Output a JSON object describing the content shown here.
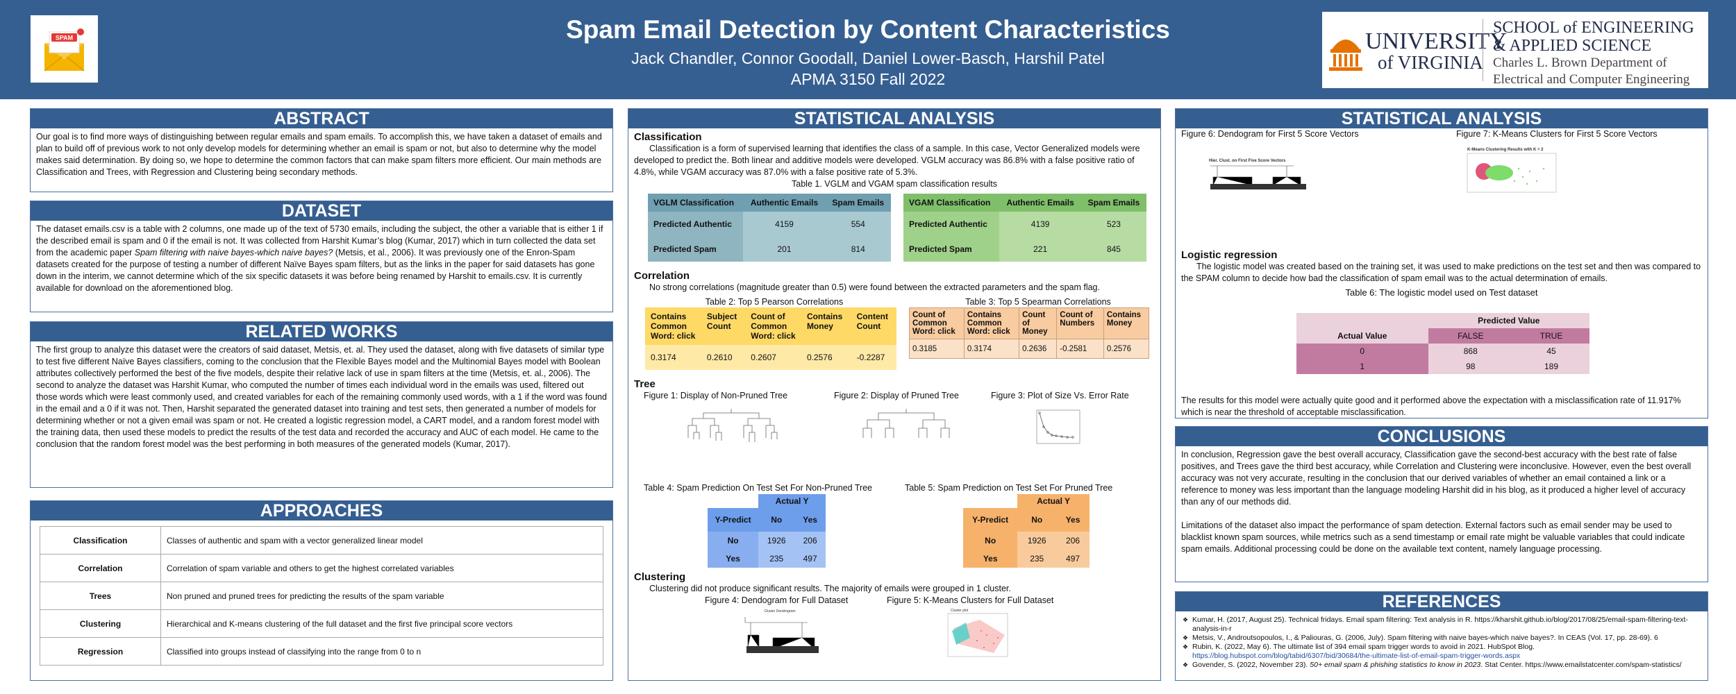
{
  "header": {
    "title": "Spam Email Detection by Content Characteristics",
    "authors": "Jack Chandler, Connor Goodall, Daniel Lower-Basch, Harshil Patel",
    "course": "APMA 3150 Fall 2022",
    "spam_icon_text": "SPAM",
    "uva_line1": "UNIVERSITY",
    "uva_line2": "of VIRGINIA",
    "school_line1": "SCHOOL of ENGINEERING",
    "school_line2": "& APPLIED SCIENCE",
    "dept_line1": "Charles L. Brown Department of",
    "dept_line2": "Electrical and Computer Engineering"
  },
  "abstract": {
    "title": "ABSTRACT",
    "text": "Our goal is to find more ways of distinguishing between regular emails and spam emails. To accomplish this, we have taken a dataset of emails and plan to build off of previous work to not only develop models for determining whether an email is spam or not, but also to determine why the model makes said determination. By doing so, we hope to determine the common factors that can make spam filters more efficient. Our main methods are Classification and Trees, with Regression and Clustering being secondary methods."
  },
  "dataset": {
    "title": "DATASET",
    "text_a": "The dataset emails.csv is a table with 2 columns, one made up of the text of 5730 emails, including the subject, the other a variable that is either 1 if the described email is spam and 0 if the email is not. It was collected from Harshit Kumar’s blog (Kumar, 2017) which in turn collected the data set from the academic paper ",
    "text_italic": "Spam filtering with naive bayes-which naive bayes?",
    "text_b": " (Metsis, et al., 2006). It was previously one of the Enron-Spam datasets created for the purpose of testing a number of different Naïve Bayes spam filters, but as the links in the paper for said datasets has gone down in the interim, we cannot determine which of the six specific datasets it was before being renamed by Harshit to emails.csv. It is currently available for download on the aforementioned blog."
  },
  "related": {
    "title": "RELATED WORKS",
    "text": "The first group to analyze this dataset were the creators of said dataset, Metsis, et. al. They used the dataset, along with five datasets of similar type to test five different Naïve Bayes classifiers, coming to the conclusion that the Flexible Bayes model and the Multinomial Bayes model with Boolean attributes collectively performed the best of the five models, despite their relative lack of use in spam filters at the time (Metsis, et. al., 2006). The second to analyze the dataset was Harshit Kumar, who computed the number of times each individual word in the emails was used, filtered out those words which were least commonly used, and created variables for each of the remaining commonly used words, with a 1 if the word was found in the email and a 0 if it was not. Then, Harshit separated the generated dataset into training and test sets, then generated a number of models for determining whether or not a given email was spam or not. He created a logistic regression model, a CART model, and a random forest model with the training data, then used these models to predict the results of the test data and recorded the accuracy and AUC of each model. He came to the conclusion that the random forest model was the best performing in both measures of the generated models (Kumar, 2017)."
  },
  "approaches": {
    "title": "APPROACHES",
    "rows": [
      {
        "name": "Classification",
        "desc": "Classes of authentic and spam with a vector generalized linear model"
      },
      {
        "name": "Correlation",
        "desc": "Correlation of spam variable and others to get the highest correlated variables"
      },
      {
        "name": "Trees",
        "desc": "Non pruned and pruned trees for predicting the results of the spam variable"
      },
      {
        "name": "Clustering",
        "desc": "Hierarchical and K-means clustering of the full dataset and the first five principal score vectors"
      },
      {
        "name": "Regression",
        "desc": "Classified into groups instead of classifying into the range from 0 to n"
      }
    ]
  },
  "stat1": {
    "title": "STATISTICAL ANALYSIS",
    "classification_heading": "Classification",
    "classification_text": "Classification is a form of supervised learning that identifies the class of a sample. In this case, Vector Generalized models were developed to predict the. Both linear and additive models were developed. VGLM accuracy was 86.8% with a false positive ratio of 4.8%, while VGAM accuracy was 87.0% with a false positive rate of 5.3%.",
    "table1_caption": "Table 1. VGLM and VGAM spam classification results",
    "vglm": {
      "header": [
        "VGLM Classification",
        "Authentic Emails",
        "Spam Emails"
      ],
      "rows": [
        [
          "Predicted Authentic",
          "4159",
          "554"
        ],
        [
          "Predicted Spam",
          "201",
          "814"
        ]
      ]
    },
    "vgam": {
      "header": [
        "VGAM Classification",
        "Authentic Emails",
        "Spam Emails"
      ],
      "rows": [
        [
          "Predicted Authentic",
          "4139",
          "523"
        ],
        [
          "Predicted Spam",
          "221",
          "845"
        ]
      ]
    },
    "correlation_heading": "Correlation",
    "correlation_text": "No strong correlations (magnitude greater than 0.5) were found between the extracted parameters and the spam flag.",
    "table2_caption": "Table 2: Top 5 Pearson Correlations",
    "pearson": {
      "header": [
        "Contains Common Word: click",
        "Subject Count",
        "Count of Common Word: click",
        "Contains Money",
        "Content Count"
      ],
      "values": [
        "0.3174",
        "0.2610",
        "0.2607",
        "0.2576",
        "-0.2287"
      ]
    },
    "table3_caption": "Table 3: Top 5 Spearman Correlations",
    "spearman": {
      "header": [
        "Count of Common Word: click",
        "Contains Common Word: click",
        "Count of Money",
        "Count of Numbers",
        "Contains Money"
      ],
      "values": [
        "0.3185",
        "0.3174",
        "0.2636",
        "-0.2581",
        "0.2576"
      ]
    },
    "tree_heading": "Tree",
    "fig1_caption": "Figure 1: Display of Non-Pruned Tree",
    "fig2_caption": "Figure 2: Display of Pruned Tree",
    "fig3_caption": "Figure 3: Plot of Size Vs. Error Rate",
    "table4_caption": "Table 4: Spam Prediction On Test Set For Non-Pruned Tree",
    "table5_caption": "Table 5: Spam Prediction on Test Set For Pruned Tree",
    "tree_table": {
      "actual_label": "Actual Y",
      "ypredict_label": "Y-Predict",
      "no": "No",
      "yes": "Yes",
      "t4": [
        [
          "1926",
          "206"
        ],
        [
          "235",
          "497"
        ]
      ],
      "t5": [
        [
          "1926",
          "206"
        ],
        [
          "235",
          "497"
        ]
      ]
    },
    "clustering_heading": "Clustering",
    "clustering_text": "Clustering did not produce significant results. The majority of emails were grouped in 1 cluster.",
    "fig4_caption": "Figure 4: Dendogram for Full Dataset",
    "fig5_caption": "Figure 5: K-Means Clusters for Full Dataset",
    "fig4_title": "Cluster Dendrogram",
    "fig5_title": "Cluster plot"
  },
  "stat2": {
    "title": "STATISTICAL ANALYSIS",
    "fig6_caption": "Figure 6: Dendogram for First 5 Score Vectors",
    "fig7_caption": "Figure 7: K-Means Clusters for First 5 Score Vectors",
    "fig6_title": "Hier. Clust. on First Five Score Vectors",
    "fig7_title": "K-Means Clustering Results with K = 2",
    "logistic_heading": "Logistic regression",
    "logistic_text": "The logistic model was created based on the training set, it was used to make predictions on the test set and then was compared to the SPAM column to decide how bad the classification of spam email was to the actual determination of emails.",
    "table6_caption": "Table 6: The logistic model used on Test dataset",
    "t6_predicted": "Predicted Value",
    "t6_actual": "Actual Value",
    "t6_false": "FALSE",
    "t6_true": "TRUE",
    "t6_rows": [
      [
        "0",
        "868",
        "45"
      ],
      [
        "1",
        "98",
        "189"
      ]
    ],
    "results_text": "The results for this model were actually quite good and it performed above the expectation with a misclassification rate of 11.917% which is near the threshold of acceptable misclassification."
  },
  "conclusions": {
    "title": "CONCLUSIONS",
    "p1": "In conclusion, Regression gave the best overall accuracy, Classification gave the second-best accuracy with the best rate of false positives, and Trees gave the third best accuracy, while Correlation and Clustering were inconclusive. However, even the best overall accuracy was not very accurate, resulting in the conclusion that our derived variables of whether an email contained a link or a reference to money was less important than the language modeling Harshit did in his blog, as it produced a higher level of accuracy than any of our methods did.",
    "p2": "Limitations of the dataset also impact the performance of spam detection. External factors such as email sender may be used to blacklist known spam sources, while metrics such as a send timestamp or email rate might be valuable variables that could indicate spam emails. Additional processing could be done on the available text content, namely language processing."
  },
  "references": {
    "title": "REFERENCES",
    "r1": "Kumar, H. (2017, August 25). Technical fridays. Email spam filtering: Text analysis in R. https://kharshit.github.io/blog/2017/08/25/email-spam-filtering-text-analysis-in-r",
    "r2": "Metsis, V., Androutsopoulos, I., & Paliouras, G. (2006, July). Spam filtering with naive bayes-which naive bayes?. In CEAS (Vol. 17, pp. 28-69). 6",
    "r3a": "Rubin, K. (2022, May 6). The ultimate list of 394 email spam trigger words to avoid in 2021. HubSpot Blog.",
    "r3b": "https://blog.hubspot.com/blog/tabid/6307/bid/30684/the-ultimate-list-of-email-spam-trigger-words.aspx",
    "r4a": "Govender, S. (2022, November 23). ",
    "r4i": "50+ email spam & phishing statistics to know in 2023",
    "r4b": ". Stat Center. https://www.emailstatcenter.com/spam-statistics/"
  },
  "colors": {
    "header_blue": "#365f91",
    "vglm_header": "#6f9fb0",
    "vglm_body": "#a9c9d1",
    "vgam_header": "#7fbf6a",
    "vgam_body": "#b6dca4",
    "pearson_header": "#ffd966",
    "pearson_body": "#ffe9a6",
    "spearman_header": "#f8cba0",
    "spearman_body": "#fbe1c8",
    "t4_header": "#6d9eeb",
    "t4_body": "#a4c2f4",
    "t5_header": "#f6b26b",
    "t5_body": "#f9cb9c",
    "t6_header": "#c27ba0",
    "t6_body": "#ead1dc"
  }
}
